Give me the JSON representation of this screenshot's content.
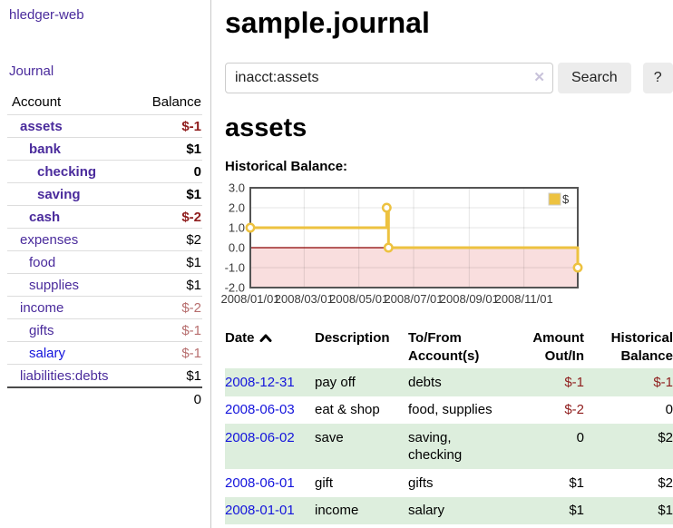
{
  "app": {
    "brand": "hledger-web"
  },
  "colors": {
    "link_purple": "#4a2b9c",
    "link_blue": "#1414dc",
    "negative_strong": "#8f1d1d",
    "negative_muted": "#b76e6e",
    "row_stripe_green": "#ddeedd",
    "series_gold": "#edc240",
    "negative_region_pink": "#f9dede",
    "zero_line_red": "#8b0000",
    "button_gray": "#ececec"
  },
  "sidebar": {
    "journal_link": "Journal",
    "columns": {
      "account": "Account",
      "balance": "Balance"
    },
    "accounts": [
      {
        "name": "assets",
        "depth": 1,
        "balance": "$-1",
        "bold": true,
        "negative": "strong"
      },
      {
        "name": "bank",
        "depth": 2,
        "balance": "$1",
        "bold": true
      },
      {
        "name": "checking",
        "depth": 3,
        "balance": "0",
        "bold": true
      },
      {
        "name": "saving",
        "depth": 3,
        "balance": "$1",
        "bold": true
      },
      {
        "name": "cash",
        "depth": 2,
        "balance": "$-2",
        "bold": true,
        "negative": "strong"
      },
      {
        "name": "expenses",
        "depth": 1,
        "balance": "$2"
      },
      {
        "name": "food",
        "depth": 2,
        "balance": "$1"
      },
      {
        "name": "supplies",
        "depth": 2,
        "balance": "$1"
      },
      {
        "name": "income",
        "depth": 1,
        "balance": "$-2",
        "negative": "muted"
      },
      {
        "name": "gifts",
        "depth": 2,
        "balance": "$-1",
        "negative": "muted"
      },
      {
        "name": "salary",
        "depth": 2,
        "balance": "$-1",
        "negative": "muted",
        "unvisited": true
      },
      {
        "name": "liabilities:debts",
        "depth": 1,
        "balance": "$1"
      }
    ],
    "total": "0"
  },
  "header": {
    "title": "sample.journal"
  },
  "search": {
    "value": "inacct:assets",
    "clear_icon": "✕",
    "button_label": "Search",
    "help_label": "?"
  },
  "account_page": {
    "heading": "assets",
    "chart_label": "Historical Balance:"
  },
  "chart_data": {
    "type": "line",
    "step": true,
    "title": "Historical Balance:",
    "series": [
      {
        "name": "$",
        "color": "#edc240",
        "points": [
          {
            "date": "2008-01-01",
            "value": 1.0
          },
          {
            "date": "2008-06-01",
            "value": 2.0
          },
          {
            "date": "2008-06-03",
            "value": 0.0
          },
          {
            "date": "2008-12-31",
            "value": -1.0
          }
        ]
      }
    ],
    "x_range": {
      "start": "2008-01-01",
      "end": "2008-12-31"
    },
    "x_tick_labels": [
      "2008/01/01",
      "2008/03/01",
      "2008/05/01",
      "2008/07/01",
      "2008/09/01",
      "2008/11/01"
    ],
    "y_tick_labels": [
      "3.0",
      "2.0",
      "1.0",
      "0.0",
      "-1.0",
      "-2.0"
    ],
    "ylim": [
      -2.0,
      3.0
    ],
    "grid": true,
    "legend": {
      "label": "$",
      "position": "top-right"
    },
    "negative_region": {
      "from": -2.0,
      "to": 0.0,
      "fill": "#f9dede"
    },
    "zero_line_color": "#8b0000"
  },
  "register": {
    "columns": [
      "Date",
      "Description",
      "To/From Account(s)",
      "Amount Out/In",
      "Historical Balance"
    ],
    "sort_icon": "chevron-up",
    "rows": [
      {
        "date": "2008-12-31",
        "description": "pay off",
        "accounts": "debts",
        "amount": "$-1",
        "balance": "$-1"
      },
      {
        "date": "2008-06-03",
        "description": "eat & shop",
        "accounts": "food, supplies",
        "amount": "$-2",
        "balance": "0"
      },
      {
        "date": "2008-06-02",
        "description": "save",
        "accounts": "saving, checking",
        "amount": "0",
        "balance": "$2"
      },
      {
        "date": "2008-06-01",
        "description": "gift",
        "accounts": "gifts",
        "amount": "$1",
        "balance": "$2"
      },
      {
        "date": "2008-01-01",
        "description": "income",
        "accounts": "salary",
        "amount": "$1",
        "balance": "$1"
      }
    ]
  }
}
